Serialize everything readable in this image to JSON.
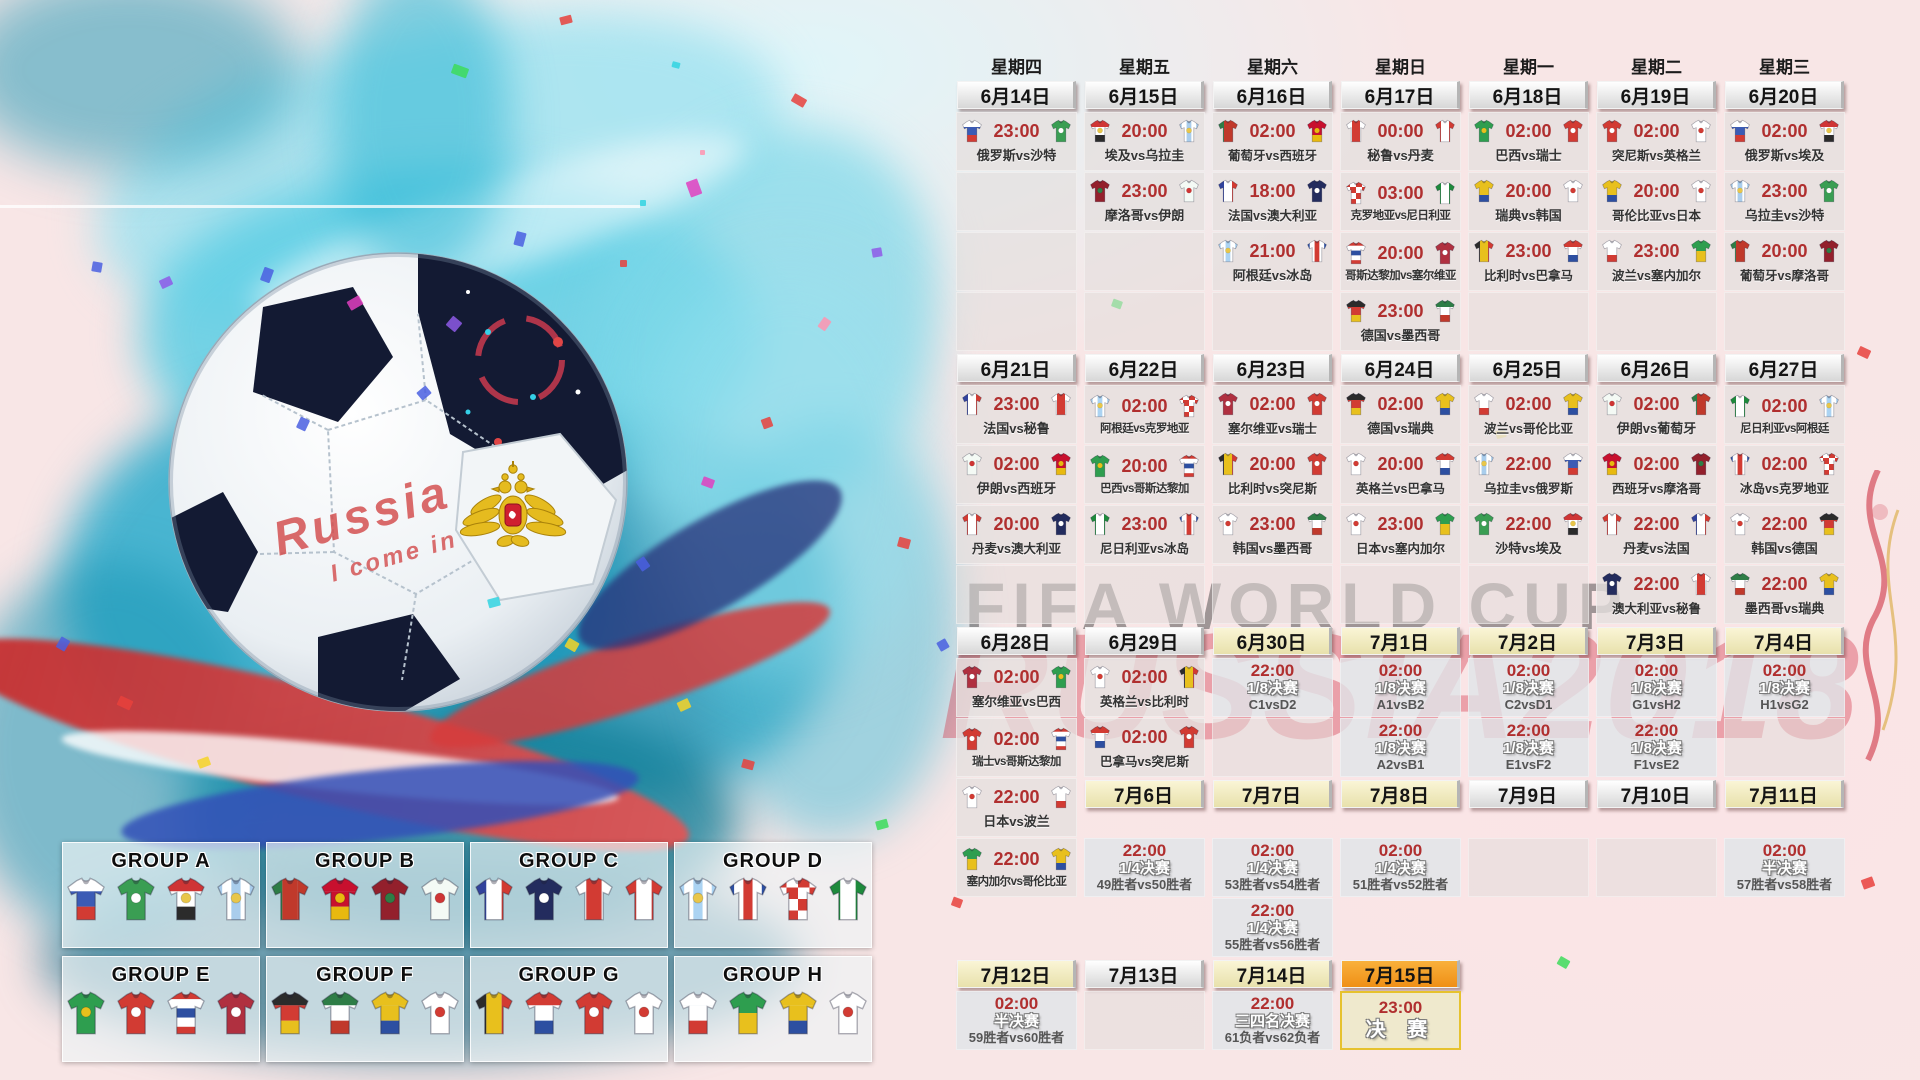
{
  "watermarks": {
    "fifa": "FIFA WORLD CUP",
    "russia": "RUSSIA2018"
  },
  "ball": {
    "graffiti_line1": "Russia",
    "graffiti_line2": "I come in"
  },
  "colors": {
    "time_text": "#b02f2f",
    "date_plain": "#e8e8e8",
    "date_cream": "#f1ebc0",
    "date_orange": "#f6a01f",
    "final_border": "#e6c22e",
    "confetti_palette": [
      "#e8413c",
      "#f5d327",
      "#3ddc5a",
      "#4a5fe0",
      "#e040c0",
      "#31d3e0",
      "#8e5ae8",
      "#ff94b0"
    ]
  },
  "calendar": {
    "rows": [
      {
        "cells": [
          {
            "kind": "w",
            "label": "星期四"
          },
          {
            "kind": "w",
            "label": "星期五"
          },
          {
            "kind": "w",
            "label": "星期六"
          },
          {
            "kind": "w",
            "label": "星期日"
          },
          {
            "kind": "w",
            "label": "星期一"
          },
          {
            "kind": "w",
            "label": "星期二"
          },
          {
            "kind": "w",
            "label": "星期三"
          }
        ]
      },
      {
        "cells": [
          {
            "kind": "d",
            "label": "6月14日",
            "style": "plain"
          },
          {
            "kind": "d",
            "label": "6月15日",
            "style": "plain"
          },
          {
            "kind": "d",
            "label": "6月16日",
            "style": "plain"
          },
          {
            "kind": "d",
            "label": "6月17日",
            "style": "plain"
          },
          {
            "kind": "d",
            "label": "6月18日",
            "style": "plain"
          },
          {
            "kind": "d",
            "label": "6月19日",
            "style": "plain"
          },
          {
            "kind": "d",
            "label": "6月20日",
            "style": "plain"
          }
        ]
      },
      {
        "cells": [
          {
            "kind": "m",
            "time": "23:00",
            "label": "俄罗斯vs沙特"
          },
          {
            "kind": "m",
            "time": "20:00",
            "label": "埃及vs乌拉圭"
          },
          {
            "kind": "m",
            "time": "02:00",
            "label": "葡萄牙vs西班牙"
          },
          {
            "kind": "m",
            "time": "00:00",
            "label": "秘鲁vs丹麦"
          },
          {
            "kind": "m",
            "time": "02:00",
            "label": "巴西vs瑞士"
          },
          {
            "kind": "m",
            "time": "02:00",
            "label": "突尼斯vs英格兰"
          },
          {
            "kind": "m",
            "time": "02:00",
            "label": "俄罗斯vs埃及"
          }
        ]
      },
      {
        "cells": [
          {
            "kind": "e"
          },
          {
            "kind": "m",
            "time": "23:00",
            "label": "摩洛哥vs伊朗"
          },
          {
            "kind": "m",
            "time": "18:00",
            "label": "法国vs澳大利亚"
          },
          {
            "kind": "m",
            "time": "03:00",
            "label": "克罗地亚vs尼日利亚"
          },
          {
            "kind": "m",
            "time": "20:00",
            "label": "瑞典vs韩国"
          },
          {
            "kind": "m",
            "time": "20:00",
            "label": "哥伦比亚vs日本"
          },
          {
            "kind": "m",
            "time": "23:00",
            "label": "乌拉圭vs沙特"
          }
        ]
      },
      {
        "cells": [
          {
            "kind": "e"
          },
          {
            "kind": "e"
          },
          {
            "kind": "m",
            "time": "21:00",
            "label": "阿根廷vs冰岛"
          },
          {
            "kind": "m",
            "time": "20:00",
            "label": "哥斯达黎加vs塞尔维亚"
          },
          {
            "kind": "m",
            "time": "23:00",
            "label": "比利时vs巴拿马"
          },
          {
            "kind": "m",
            "time": "23:00",
            "label": "波兰vs塞内加尔"
          },
          {
            "kind": "m",
            "time": "20:00",
            "label": "葡萄牙vs摩洛哥"
          }
        ]
      },
      {
        "cells": [
          {
            "kind": "e"
          },
          {
            "kind": "e"
          },
          {
            "kind": "e"
          },
          {
            "kind": "m",
            "time": "23:00",
            "label": "德国vs墨西哥"
          },
          {
            "kind": "e"
          },
          {
            "kind": "e"
          },
          {
            "kind": "e"
          }
        ]
      },
      {
        "cells": [
          {
            "kind": "d",
            "label": "6月21日",
            "style": "plain"
          },
          {
            "kind": "d",
            "label": "6月22日",
            "style": "plain"
          },
          {
            "kind": "d",
            "label": "6月23日",
            "style": "plain"
          },
          {
            "kind": "d",
            "label": "6月24日",
            "style": "plain"
          },
          {
            "kind": "d",
            "label": "6月25日",
            "style": "plain"
          },
          {
            "kind": "d",
            "label": "6月26日",
            "style": "plain"
          },
          {
            "kind": "d",
            "label": "6月27日",
            "style": "plain"
          }
        ]
      },
      {
        "cells": [
          {
            "kind": "m",
            "time": "23:00",
            "label": "法国vs秘鲁"
          },
          {
            "kind": "m",
            "time": "02:00",
            "label": "阿根廷vs克罗地亚"
          },
          {
            "kind": "m",
            "time": "02:00",
            "label": "塞尔维亚vs瑞士"
          },
          {
            "kind": "m",
            "time": "02:00",
            "label": "德国vs瑞典"
          },
          {
            "kind": "m",
            "time": "02:00",
            "label": "波兰vs哥伦比亚"
          },
          {
            "kind": "m",
            "time": "02:00",
            "label": "伊朗vs葡萄牙"
          },
          {
            "kind": "m",
            "time": "02:00",
            "label": "尼日利亚vs阿根廷"
          }
        ]
      },
      {
        "cells": [
          {
            "kind": "m",
            "time": "02:00",
            "label": "伊朗vs西班牙"
          },
          {
            "kind": "m",
            "time": "20:00",
            "label": "巴西vs哥斯达黎加"
          },
          {
            "kind": "m",
            "time": "20:00",
            "label": "比利时vs突尼斯"
          },
          {
            "kind": "m",
            "time": "20:00",
            "label": "英格兰vs巴拿马"
          },
          {
            "kind": "m",
            "time": "22:00",
            "label": "乌拉圭vs俄罗斯"
          },
          {
            "kind": "m",
            "time": "02:00",
            "label": "西班牙vs摩洛哥"
          },
          {
            "kind": "m",
            "time": "02:00",
            "label": "冰岛vs克罗地亚"
          }
        ]
      },
      {
        "cells": [
          {
            "kind": "m",
            "time": "20:00",
            "label": "丹麦vs澳大利亚"
          },
          {
            "kind": "m",
            "time": "23:00",
            "label": "尼日利亚vs冰岛"
          },
          {
            "kind": "m",
            "time": "23:00",
            "label": "韩国vs墨西哥"
          },
          {
            "kind": "m",
            "time": "23:00",
            "label": "日本vs塞内加尔"
          },
          {
            "kind": "m",
            "time": "22:00",
            "label": "沙特vs埃及"
          },
          {
            "kind": "m",
            "time": "22:00",
            "label": "丹麦vs法国"
          },
          {
            "kind": "m",
            "time": "22:00",
            "label": "韩国vs德国"
          }
        ]
      },
      {
        "cells": [
          {
            "kind": "e"
          },
          {
            "kind": "e"
          },
          {
            "kind": "e"
          },
          {
            "kind": "e"
          },
          {
            "kind": "e"
          },
          {
            "kind": "m",
            "time": "22:00",
            "label": "澳大利亚vs秘鲁"
          },
          {
            "kind": "m",
            "time": "22:00",
            "label": "墨西哥vs瑞典"
          }
        ]
      },
      {
        "cells": [
          {
            "kind": "d",
            "label": "6月28日",
            "style": "plain"
          },
          {
            "kind": "d",
            "label": "6月29日",
            "style": "plain"
          },
          {
            "kind": "d",
            "label": "6月30日",
            "style": "cream"
          },
          {
            "kind": "d",
            "label": "7月1日",
            "style": "cream"
          },
          {
            "kind": "d",
            "label": "7月2日",
            "style": "cream"
          },
          {
            "kind": "d",
            "label": "7月3日",
            "style": "cream"
          },
          {
            "kind": "d",
            "label": "7月4日",
            "style": "cream"
          }
        ]
      },
      {
        "cells": [
          {
            "kind": "m",
            "time": "02:00",
            "label": "塞尔维亚vs巴西"
          },
          {
            "kind": "m",
            "time": "02:00",
            "label": "英格兰vs比利时"
          },
          {
            "kind": "k",
            "time": "22:00",
            "round": "1/8决赛",
            "detail": "C1vsD2"
          },
          {
            "kind": "k",
            "time": "02:00",
            "round": "1/8决赛",
            "detail": "A1vsB2"
          },
          {
            "kind": "k",
            "time": "02:00",
            "round": "1/8决赛",
            "detail": "C2vsD1"
          },
          {
            "kind": "k",
            "time": "02:00",
            "round": "1/8决赛",
            "detail": "G1vsH2"
          },
          {
            "kind": "k",
            "time": "02:00",
            "round": "1/8决赛",
            "detail": "H1vsG2"
          }
        ]
      },
      {
        "cells": [
          {
            "kind": "m",
            "time": "02:00",
            "label": "瑞士vs哥斯达黎加"
          },
          {
            "kind": "m",
            "time": "02:00",
            "label": "巴拿马vs突尼斯"
          },
          {
            "kind": "e"
          },
          {
            "kind": "k",
            "time": "22:00",
            "round": "1/8决赛",
            "detail": "A2vsB1"
          },
          {
            "kind": "k",
            "time": "22:00",
            "round": "1/8决赛",
            "detail": "E1vsF2"
          },
          {
            "kind": "k",
            "time": "22:00",
            "round": "1/8决赛",
            "detail": "F1vsE2"
          },
          {
            "kind": "e"
          }
        ]
      },
      {
        "cells": [
          {
            "kind": "m",
            "time": "22:00",
            "label": "日本vs波兰"
          },
          {
            "kind": "d",
            "label": "7月6日",
            "style": "cream"
          },
          {
            "kind": "d",
            "label": "7月7日",
            "style": "cream"
          },
          {
            "kind": "d",
            "label": "7月8日",
            "style": "cream"
          },
          {
            "kind": "d",
            "label": "7月9日",
            "style": "plain"
          },
          {
            "kind": "d",
            "label": "7月10日",
            "style": "plain"
          },
          {
            "kind": "d",
            "label": "7月11日",
            "style": "cream"
          }
        ]
      },
      {
        "cells": [
          {
            "kind": "m",
            "time": "22:00",
            "label": "塞内加尔vs哥伦比亚"
          },
          {
            "kind": "k",
            "time": "22:00",
            "round": "1/4决赛",
            "detail": "49胜者vs50胜者"
          },
          {
            "kind": "k",
            "time": "02:00",
            "round": "1/4决赛",
            "detail": "53胜者vs54胜者"
          },
          {
            "kind": "k",
            "time": "02:00",
            "round": "1/4决赛",
            "detail": "51胜者vs52胜者"
          },
          {
            "kind": "e"
          },
          {
            "kind": "e"
          },
          {
            "kind": "k",
            "time": "02:00",
            "round": "半决赛",
            "detail": "57胜者vs58胜者"
          }
        ]
      },
      {
        "cells": [
          {
            "kind": "b"
          },
          {
            "kind": "b"
          },
          {
            "kind": "k",
            "time": "22:00",
            "round": "1/4决赛",
            "detail": "55胜者vs56胜者"
          },
          {
            "kind": "b"
          },
          {
            "kind": "b"
          },
          {
            "kind": "b"
          },
          {
            "kind": "b"
          }
        ]
      },
      {
        "cells": [
          {
            "kind": "d",
            "label": "7月12日",
            "style": "cream"
          },
          {
            "kind": "d",
            "label": "7月13日",
            "style": "plain"
          },
          {
            "kind": "d",
            "label": "7月14日",
            "style": "cream"
          },
          {
            "kind": "d",
            "label": "7月15日",
            "style": "orange"
          },
          {
            "kind": "b"
          },
          {
            "kind": "b"
          },
          {
            "kind": "b"
          }
        ]
      },
      {
        "cells": [
          {
            "kind": "k",
            "time": "02:00",
            "round": "半决赛",
            "detail": "59胜者vs60胜者"
          },
          {
            "kind": "e"
          },
          {
            "kind": "k",
            "time": "22:00",
            "round": "三四名决赛",
            "detail": "61负者vs62负者"
          },
          {
            "kind": "f",
            "time": "23:00",
            "round": "决 赛"
          },
          {
            "kind": "b"
          },
          {
            "kind": "b"
          },
          {
            "kind": "b"
          }
        ]
      }
    ]
  },
  "groups": [
    {
      "name": "GROUP A",
      "teams": [
        "俄罗斯",
        "沙特",
        "埃及",
        "乌拉圭"
      ]
    },
    {
      "name": "GROUP B",
      "teams": [
        "葡萄牙",
        "西班牙",
        "摩洛哥",
        "伊朗"
      ]
    },
    {
      "name": "GROUP C",
      "teams": [
        "法国",
        "澳大利亚",
        "秘鲁",
        "丹麦"
      ]
    },
    {
      "name": "GROUP D",
      "teams": [
        "阿根廷",
        "冰岛",
        "克罗地亚",
        "尼日利亚"
      ]
    },
    {
      "name": "GROUP E",
      "teams": [
        "巴西",
        "瑞士",
        "哥斯达黎加",
        "塞尔维亚"
      ]
    },
    {
      "name": "GROUP F",
      "teams": [
        "德国",
        "墨西哥",
        "瑞典",
        "韩国"
      ]
    },
    {
      "name": "GROUP G",
      "teams": [
        "比利时",
        "巴拿马",
        "突尼斯",
        "英格兰"
      ]
    },
    {
      "name": "GROUP H",
      "teams": [
        "波兰",
        "塞内加尔",
        "哥伦比亚",
        "日本"
      ]
    }
  ],
  "teams": {
    "俄罗斯": {
      "c": [
        "#ffffff",
        "#3b5bb5",
        "#d23b33"
      ],
      "d": "h"
    },
    "沙特": {
      "c": [
        "#3a9e53"
      ],
      "e": "#ffffff"
    },
    "埃及": {
      "c": [
        "#cf3535",
        "#ffffff",
        "#2b2b2b"
      ],
      "d": "h",
      "e": "#e8c64a"
    },
    "乌拉圭": {
      "c": [
        "#a9cdec",
        "#ffffff",
        "#a9cdec",
        "#ffffff",
        "#a9cdec"
      ],
      "d": "v",
      "e": "#e8c64a"
    },
    "摩洛哥": {
      "c": [
        "#93202c"
      ],
      "e": "#2e7d46"
    },
    "伊朗": {
      "c": [
        "#f4faf5"
      ],
      "e": "#cf3535"
    },
    "葡萄牙": {
      "c": [
        "#2e7d46",
        "#c0392b",
        "#c0392b"
      ],
      "d": "v"
    },
    "西班牙": {
      "c": [
        "#c8102e",
        "#c8102e",
        "#e8b90f"
      ],
      "d": "h",
      "e": "#e8b90f"
    },
    "法国": {
      "c": [
        "#32439c",
        "#ffffff",
        "#d23b33"
      ],
      "d": "v"
    },
    "澳大利亚": {
      "c": [
        "#232c5e"
      ],
      "e": "#ffffff"
    },
    "阿根廷": {
      "c": [
        "#abd3f2",
        "#ffffff",
        "#abd3f2",
        "#ffffff",
        "#abd3f2"
      ],
      "d": "v",
      "e": "#e8c64a"
    },
    "冰岛": {
      "c": [
        "#2d4fa1",
        "#ffffff",
        "#d23b33",
        "#ffffff",
        "#2d4fa1"
      ],
      "d": "v"
    },
    "秘鲁": {
      "c": [
        "#ffffff",
        "#d23b33",
        "#ffffff"
      ],
      "d": "v"
    },
    "丹麦": {
      "c": [
        "#d23b33",
        "#ffffff",
        "#d23b33"
      ],
      "d": "v"
    },
    "克罗地亚": {
      "c": [
        "#d23b33",
        "#ffffff"
      ],
      "d": "c"
    },
    "尼日利亚": {
      "c": [
        "#1e8a3c",
        "#ffffff",
        "#1e8a3c"
      ],
      "d": "v"
    },
    "哥斯达黎加": {
      "c": [
        "#d23b33",
        "#ffffff",
        "#2d4fa1",
        "#ffffff",
        "#d23b33"
      ],
      "d": "h"
    },
    "塞尔维亚": {
      "c": [
        "#b03040"
      ],
      "e": "#ffffff"
    },
    "德国": {
      "c": [
        "#2b2b2b",
        "#d23b33",
        "#e8c01d"
      ],
      "d": "h"
    },
    "墨西哥": {
      "c": [
        "#2e7d46",
        "#ffffff",
        "#c0392b"
      ],
      "d": "h"
    },
    "巴西": {
      "c": [
        "#2e9e4f"
      ],
      "e": "#e8c01d"
    },
    "瑞士": {
      "c": [
        "#d23b33"
      ],
      "e": "#ffffff"
    },
    "瑞典": {
      "c": [
        "#e8c01d",
        "#e8c01d",
        "#2d4fa1"
      ],
      "d": "h"
    },
    "韩国": {
      "c": [
        "#ffffff"
      ],
      "e": "#d23b33"
    },
    "比利时": {
      "c": [
        "#2b2b2b",
        "#e8c01d",
        "#d23b33"
      ],
      "d": "v"
    },
    "巴拿马": {
      "c": [
        "#d23b33",
        "#ffffff",
        "#2d4fa1"
      ],
      "d": "h"
    },
    "突尼斯": {
      "c": [
        "#d23b33"
      ],
      "e": "#ffffff"
    },
    "英格兰": {
      "c": [
        "#ffffff"
      ],
      "e": "#d23b33"
    },
    "哥伦比亚": {
      "c": [
        "#e8c01d",
        "#e8c01d",
        "#2d4fa1"
      ],
      "d": "h"
    },
    "日本": {
      "c": [
        "#ffffff"
      ],
      "e": "#d23b33"
    },
    "波兰": {
      "c": [
        "#ffffff",
        "#ffffff",
        "#d23b33"
      ],
      "d": "h"
    },
    "塞内加尔": {
      "c": [
        "#2e9e4f",
        "#e8c01d"
      ],
      "d": "h"
    }
  }
}
